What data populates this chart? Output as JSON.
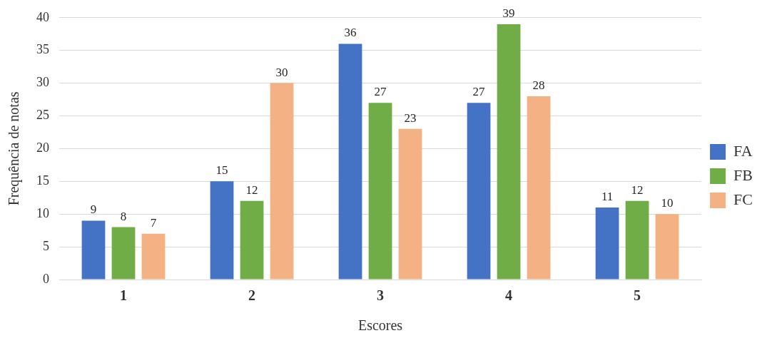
{
  "chart_data": {
    "type": "bar",
    "xlabel": "Escores",
    "ylabel": "Frequência de notas",
    "categories": [
      "1",
      "2",
      "3",
      "4",
      "5"
    ],
    "series": [
      {
        "name": "FA",
        "color": "#4472c4",
        "values": [
          9,
          15,
          36,
          27,
          11
        ]
      },
      {
        "name": "FB",
        "color": "#70ad47",
        "values": [
          8,
          12,
          27,
          39,
          12
        ]
      },
      {
        "name": "FC",
        "color": "#f4b183",
        "values": [
          7,
          30,
          23,
          28,
          10
        ]
      }
    ],
    "ylim": [
      0,
      40
    ],
    "yticks": [
      0,
      5,
      10,
      15,
      20,
      25,
      30,
      35,
      40
    ],
    "grid": "y",
    "legend": "right",
    "data_labels": true
  }
}
